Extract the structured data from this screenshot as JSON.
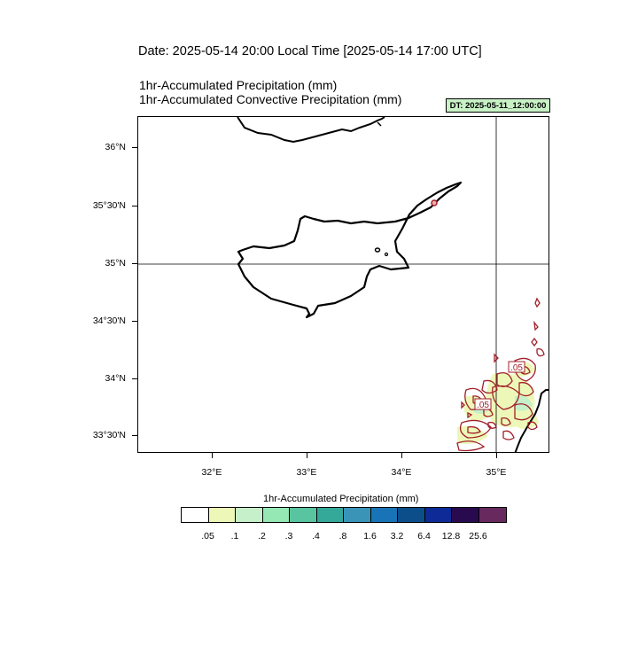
{
  "header": {
    "date_line": "Date: 2025-05-14  20:00 Local Time [2025-05-14  17:00 UTC]",
    "title_1": "1hr-Accumulated Precipitation   (mm)",
    "title_2": "1hr-Accumulated Convective Precipitation   (mm)",
    "dt_badge": "DT: 2025-05-11_12:00:00"
  },
  "map": {
    "region": "Cyprus / Eastern Mediterranean",
    "lat_labels": [
      "36°N",
      "35°30'N",
      "35°N",
      "34°30'N",
      "34°N",
      "33°30'N"
    ],
    "lon_labels": [
      "32°E",
      "33°E",
      "34°E",
      "35°E"
    ],
    "grid_lines": [
      "35°N",
      "35°E"
    ],
    "contour_label": ".05",
    "contour_color": "#a0202a",
    "coast_color": "#000000"
  },
  "colorbar": {
    "title": "1hr-Accumulated Precipitation  (mm)",
    "colors": [
      "#ffffff",
      "#edf8b8",
      "#c6f0c9",
      "#95e7b4",
      "#58c4a0",
      "#34a899",
      "#3994b8",
      "#1874b6",
      "#0c4e8a",
      "#0e2a96",
      "#2a0a4e",
      "#682a5e"
    ],
    "labels": [
      ".05",
      ".1",
      ".2",
      ".3",
      ".4",
      ".8",
      "1.6",
      "3.2",
      "6.4",
      "12.8",
      "25.6"
    ]
  }
}
